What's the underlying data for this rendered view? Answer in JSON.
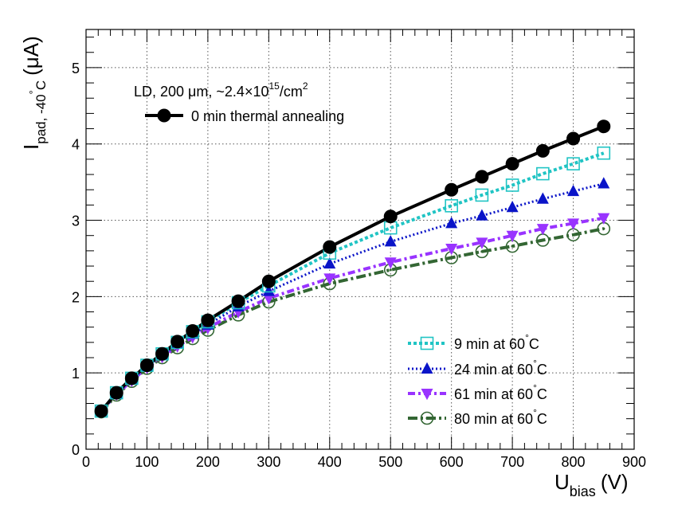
{
  "chart_data": {
    "type": "line",
    "title": "",
    "xlabel": {
      "main": "U",
      "sub": "bias",
      "unit": "(V)"
    },
    "ylabel": {
      "main": "I",
      "sub": "pad, -40",
      "degree": "°",
      "subtail": "C",
      "unit": "(μA)"
    },
    "xlim": [
      0,
      900
    ],
    "ylim": [
      0,
      5.5
    ],
    "x_ticks": [
      0,
      100,
      200,
      300,
      400,
      500,
      600,
      700,
      800,
      900
    ],
    "y_ticks": [
      0,
      1,
      2,
      3,
      4,
      5
    ],
    "grid": true,
    "annotation": {
      "prefix": "LD, 200 μm, ~2.4×10",
      "exponent": "15",
      "suffix": "/cm",
      "power": "2"
    },
    "x": [
      25,
      50,
      75,
      100,
      125,
      150,
      175,
      200,
      250,
      300,
      400,
      500,
      600,
      650,
      700,
      750,
      800,
      850
    ],
    "series": [
      {
        "name": "0 min thermal annealing",
        "legend_text": "0 min thermal annealing",
        "color": "#000000",
        "marker": "filled-circle",
        "dash": "solid",
        "values": [
          0.5,
          0.74,
          0.93,
          1.1,
          1.25,
          1.41,
          1.55,
          1.69,
          1.94,
          2.2,
          2.65,
          3.05,
          3.4,
          3.57,
          3.74,
          3.91,
          4.07,
          4.23
        ]
      },
      {
        "name": "9 min at 60°C",
        "legend_text": "9 min at 60",
        "legend_deg": "°",
        "legend_tail": "C",
        "color": "#20c4c4",
        "marker": "open-square",
        "dash": "dotted",
        "values": [
          0.5,
          0.74,
          0.93,
          1.1,
          1.25,
          1.4,
          1.54,
          1.67,
          1.92,
          2.14,
          2.57,
          2.9,
          3.19,
          3.33,
          3.46,
          3.61,
          3.74,
          3.88
        ]
      },
      {
        "name": "24 min at 60°C",
        "legend_text": "24 min at 60",
        "legend_deg": "°",
        "legend_tail": "C",
        "color": "#0a14c8",
        "marker": "filled-triangle-up",
        "dash": "fine-dotted",
        "values": [
          0.5,
          0.73,
          0.91,
          1.09,
          1.23,
          1.38,
          1.51,
          1.63,
          1.87,
          2.07,
          2.43,
          2.72,
          2.96,
          3.06,
          3.17,
          3.28,
          3.38,
          3.48
        ]
      },
      {
        "name": "61 min at 60°C",
        "legend_text": "61 min at 60",
        "legend_deg": "°",
        "legend_tail": "C",
        "color": "#9933ff",
        "marker": "filled-triangle-down",
        "dash": "dash-dot",
        "values": [
          0.5,
          0.72,
          0.9,
          1.07,
          1.21,
          1.35,
          1.47,
          1.59,
          1.8,
          1.98,
          2.24,
          2.45,
          2.63,
          2.71,
          2.8,
          2.89,
          2.96,
          3.03
        ]
      },
      {
        "name": "80 min at 60°C",
        "legend_text": "80 min at 60",
        "legend_deg": "°",
        "legend_tail": "C",
        "color": "#336633",
        "marker": "open-circle-dot",
        "dash": "long-dash-dot",
        "values": [
          0.49,
          0.71,
          0.89,
          1.06,
          1.2,
          1.33,
          1.45,
          1.56,
          1.76,
          1.93,
          2.17,
          2.35,
          2.51,
          2.59,
          2.66,
          2.74,
          2.81,
          2.89
        ]
      }
    ]
  }
}
